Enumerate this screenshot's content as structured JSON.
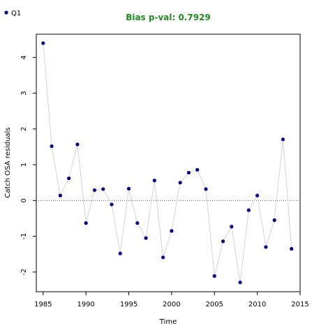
{
  "chart_data": {
    "type": "scatter",
    "title": "Bias p-val: 0.7929",
    "title_color": "#228B22",
    "xlabel": "Time",
    "ylabel": "Catch OSA residuals",
    "xlim": [
      1984.2,
      2015.0
    ],
    "ylim": [
      -2.55,
      4.65
    ],
    "xticks": [
      1985,
      1990,
      1995,
      2000,
      2005,
      2010,
      2015
    ],
    "yticks": [
      -2,
      -1,
      0,
      1,
      2,
      3,
      4
    ],
    "reference_line": 0,
    "reference_line_style": "dotted",
    "grid": false,
    "legend_position": "top-left",
    "line_color": "#d3d3d3",
    "point_color": "#00008B",
    "series": [
      {
        "name": "Q1",
        "x": [
          1985,
          1986,
          1987,
          1988,
          1989,
          1990,
          1991,
          1992,
          1993,
          1994,
          1995,
          1996,
          1997,
          1998,
          1999,
          2000,
          2001,
          2002,
          2003,
          2004,
          2005,
          2006,
          2007,
          2008,
          2009,
          2010,
          2011,
          2012,
          2013,
          2014
        ],
        "values": [
          4.4,
          1.52,
          0.14,
          0.62,
          1.57,
          -0.63,
          0.29,
          0.32,
          -0.11,
          -1.48,
          0.33,
          -0.63,
          -1.05,
          0.56,
          -1.59,
          -0.85,
          0.5,
          0.78,
          0.86,
          0.32,
          -2.11,
          -1.14,
          -0.73,
          -2.29,
          -0.27,
          0.14,
          -1.3,
          -0.55,
          1.71,
          -1.35
        ]
      }
    ]
  }
}
